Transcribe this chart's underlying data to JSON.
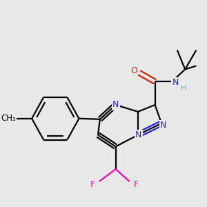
{
  "bg_color": "#e8e8e8",
  "atom_colors": {
    "N": "#2222dd",
    "O": "#cc2200",
    "F": "#ee00aa",
    "H": "#66bbbb",
    "C": "#000000"
  },
  "bond_color": "#000000",
  "lw": 1.6,
  "fontsize": 9
}
